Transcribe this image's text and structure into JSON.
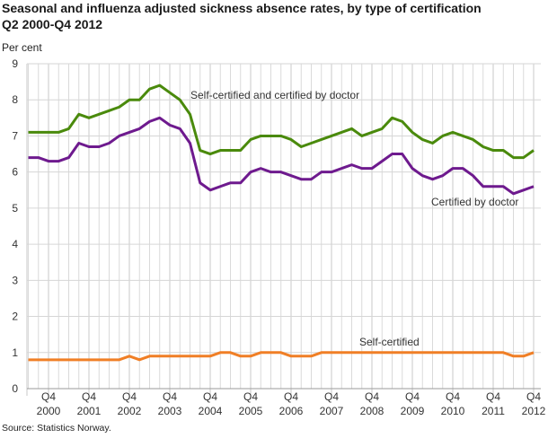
{
  "chart_data": {
    "type": "line",
    "title": "Seasonal and influenza adjusted sickness absence rates, by type of certification",
    "subtitle": "Q2 2000-Q4 2012",
    "ylabel": "Per cent",
    "xlabel": "",
    "ylim": [
      0,
      9
    ],
    "yticks": [
      0,
      1,
      2,
      3,
      4,
      5,
      6,
      7,
      8,
      9
    ],
    "x_start": "Q2 2000",
    "x_end": "Q4 2012",
    "x_tick_quarter": "Q4",
    "x_tick_years": [
      "2000",
      "2001",
      "2002",
      "2003",
      "2004",
      "2005",
      "2006",
      "2007",
      "2008",
      "2009",
      "2010",
      "2011",
      "2012"
    ],
    "grid": true,
    "series": [
      {
        "name": "Self-certified and certified by doctor",
        "color": "#4a8a0c",
        "values": [
          7.1,
          7.1,
          7.1,
          7.1,
          7.2,
          7.6,
          7.5,
          7.6,
          7.7,
          7.8,
          8.0,
          8.0,
          8.3,
          8.4,
          8.2,
          8.0,
          7.6,
          6.6,
          6.5,
          6.6,
          6.6,
          6.6,
          6.9,
          7.0,
          7.0,
          7.0,
          6.9,
          6.7,
          6.8,
          6.9,
          7.0,
          7.1,
          7.2,
          7.0,
          7.1,
          7.2,
          7.5,
          7.4,
          7.1,
          6.9,
          6.8,
          7.0,
          7.1,
          7.0,
          6.9,
          6.7,
          6.6,
          6.6,
          6.4,
          6.4,
          6.6
        ]
      },
      {
        "name": "Certified by doctor",
        "color": "#6e1a8e",
        "values": [
          6.4,
          6.4,
          6.3,
          6.3,
          6.4,
          6.8,
          6.7,
          6.7,
          6.8,
          7.0,
          7.1,
          7.2,
          7.4,
          7.5,
          7.3,
          7.2,
          6.8,
          5.7,
          5.5,
          5.6,
          5.7,
          5.7,
          6.0,
          6.1,
          6.0,
          6.0,
          5.9,
          5.8,
          5.8,
          6.0,
          6.0,
          6.1,
          6.2,
          6.1,
          6.1,
          6.3,
          6.5,
          6.5,
          6.1,
          5.9,
          5.8,
          5.9,
          6.1,
          6.1,
          5.9,
          5.6,
          5.6,
          5.6,
          5.4,
          5.5,
          5.6
        ]
      },
      {
        "name": "Self-certified",
        "color": "#f07f26",
        "values": [
          0.8,
          0.8,
          0.8,
          0.8,
          0.8,
          0.8,
          0.8,
          0.8,
          0.8,
          0.8,
          0.9,
          0.8,
          0.9,
          0.9,
          0.9,
          0.9,
          0.9,
          0.9,
          0.9,
          1.0,
          1.0,
          0.9,
          0.9,
          1.0,
          1.0,
          1.0,
          0.9,
          0.9,
          0.9,
          1.0,
          1.0,
          1.0,
          1.0,
          1.0,
          1.0,
          1.0,
          1.0,
          1.0,
          1.0,
          1.0,
          1.0,
          1.0,
          1.0,
          1.0,
          1.0,
          1.0,
          1.0,
          1.0,
          0.9,
          0.9,
          1.0
        ]
      }
    ],
    "source": "Source: Statistics Norway."
  }
}
